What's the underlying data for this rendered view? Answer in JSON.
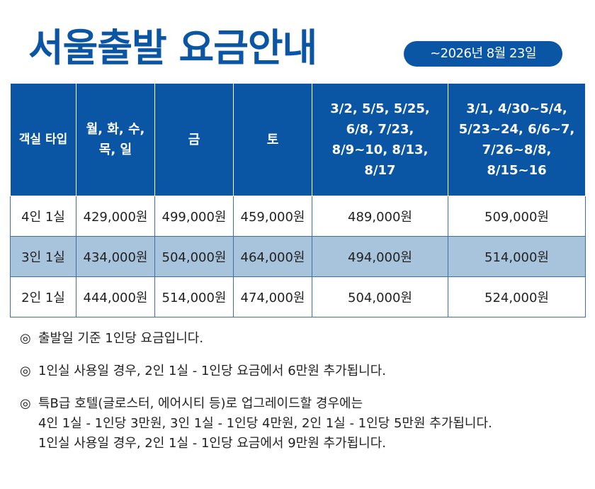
{
  "header": {
    "title": "서울출발 요금안내",
    "date_badge": "~2026년 8월 23일"
  },
  "table": {
    "headers": [
      [
        "객실 타입"
      ],
      [
        "월, 화, 수,",
        "목, 일"
      ],
      [
        "금"
      ],
      [
        "토"
      ],
      [
        "3/2, 5/5, 5/25,",
        "6/8, 7/23,",
        "8/9~10, 8/13,",
        "8/17"
      ],
      [
        "3/1, 4/30~5/4,",
        "5/23~24, 6/6~7,",
        "7/26~8/8,",
        "8/15~16"
      ]
    ],
    "rows": [
      [
        "4인 1실",
        "429,000원",
        "499,000원",
        "459,000원",
        "489,000원",
        "509,000원"
      ],
      [
        "3인 1실",
        "434,000원",
        "504,000원",
        "464,000원",
        "494,000원",
        "514,000원"
      ],
      [
        "2인 1실",
        "444,000원",
        "514,000원",
        "474,000원",
        "504,000원",
        "524,000원"
      ]
    ]
  },
  "notes": {
    "marker": "◎",
    "items": [
      [
        "출발일 기준 1인당 요금입니다."
      ],
      [
        "1인실 사용일 경우, 2인 1실 - 1인당 요금에서 6만원 추가됩니다."
      ],
      [
        "특B급 호텔(글로스터, 에어시티 등)로 업그레이드할 경우에는",
        "4인 1실 - 1인당 3만원, 3인 1실 - 1인당 4만원, 2인 1실 - 1인당 5만원 추가됩니다.",
        "1인실 사용일 경우, 2인 1실 - 1인당 요금에서 9만원 추가됩니다."
      ]
    ]
  },
  "colors": {
    "brand_blue": "#0a55a4",
    "alt_row": "#a8c3dc"
  }
}
